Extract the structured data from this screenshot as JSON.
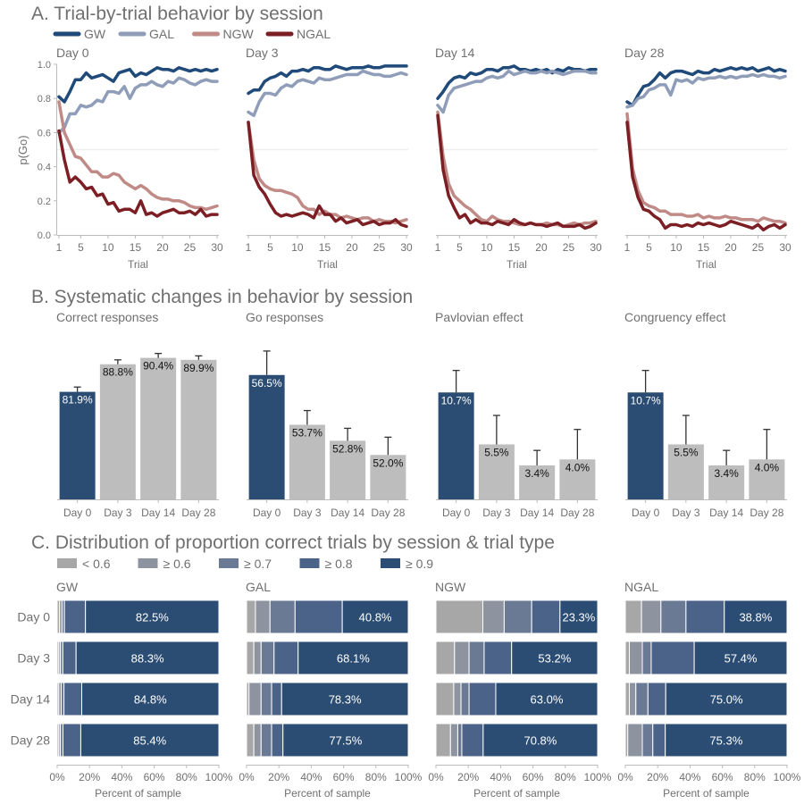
{
  "sections": {
    "a_title": "A. Trial-by-trial behavior by session",
    "b_title": "B. Systematic changes in behavior by session",
    "c_title": "C. Distribution of proportion correct trials by session & trial type"
  },
  "colors": {
    "GW": "#1f4a7a",
    "GAL": "#8f9db8",
    "NGW": "#c08a86",
    "NGAL": "#7c1f24",
    "highlight_bar": "#2c4d73",
    "grey_bar": "#bdbdbd",
    "dist": [
      "#a7a7a7",
      "#8d939f",
      "#6b7a94",
      "#4b6289",
      "#2c4d73"
    ],
    "text": "#707070",
    "axis": "#bbbbbb"
  },
  "chart_data": [
    {
      "id": "A",
      "type": "line",
      "legend": [
        "GW",
        "GAL",
        "NGW",
        "NGAL"
      ],
      "legend_position": "top-left",
      "ylabel": "p(Go)",
      "xlabel": "Trial",
      "ylim": [
        0,
        1
      ],
      "xlim": [
        1,
        30
      ],
      "yticks": [
        "0.0",
        "0.2",
        "0.4",
        "0.6",
        "0.8",
        "1.0"
      ],
      "xticks": [
        1,
        5,
        10,
        15,
        20,
        25,
        30
      ],
      "reference_line": 0.5,
      "panels": [
        {
          "title": "Day 0",
          "series": [
            {
              "name": "GW",
              "values": [
                0.81,
                0.78,
                0.84,
                0.91,
                0.91,
                0.95,
                0.92,
                0.93,
                0.94,
                0.92,
                0.9,
                0.95,
                0.96,
                0.97,
                0.93,
                0.95,
                0.94,
                0.96,
                0.98,
                0.97,
                0.97,
                0.96,
                0.98,
                0.97,
                0.96,
                0.97,
                0.96,
                0.97,
                0.96,
                0.97
              ]
            },
            {
              "name": "GAL",
              "values": [
                0.6,
                0.63,
                0.71,
                0.71,
                0.76,
                0.75,
                0.76,
                0.79,
                0.78,
                0.84,
                0.84,
                0.83,
                0.87,
                0.8,
                0.86,
                0.88,
                0.88,
                0.9,
                0.88,
                0.87,
                0.9,
                0.89,
                0.92,
                0.91,
                0.89,
                0.88,
                0.9,
                0.91,
                0.9,
                0.9
              ]
            },
            {
              "name": "NGW",
              "values": [
                0.78,
                0.6,
                0.53,
                0.46,
                0.45,
                0.41,
                0.37,
                0.37,
                0.34,
                0.34,
                0.36,
                0.35,
                0.31,
                0.29,
                0.27,
                0.29,
                0.27,
                0.24,
                0.22,
                0.21,
                0.21,
                0.2,
                0.2,
                0.19,
                0.17,
                0.16,
                0.16,
                0.15,
                0.16,
                0.17
              ]
            },
            {
              "name": "NGAL",
              "values": [
                0.61,
                0.44,
                0.31,
                0.34,
                0.31,
                0.27,
                0.28,
                0.23,
                0.24,
                0.18,
                0.19,
                0.14,
                0.15,
                0.15,
                0.13,
                0.2,
                0.12,
                0.13,
                0.11,
                0.13,
                0.14,
                0.15,
                0.13,
                0.13,
                0.14,
                0.12,
                0.15,
                0.11,
                0.12,
                0.12
              ]
            }
          ]
        },
        {
          "title": "Day 3",
          "series": [
            {
              "name": "GW",
              "values": [
                0.83,
                0.85,
                0.85,
                0.9,
                0.92,
                0.93,
                0.95,
                0.93,
                0.96,
                0.96,
                0.97,
                0.96,
                0.98,
                0.98,
                0.97,
                0.97,
                0.99,
                0.98,
                0.97,
                0.98,
                0.98,
                0.98,
                0.99,
                0.98,
                0.98,
                0.99,
                0.99,
                0.99,
                0.99,
                0.99
              ]
            },
            {
              "name": "GAL",
              "values": [
                0.72,
                0.7,
                0.78,
                0.83,
                0.83,
                0.82,
                0.86,
                0.88,
                0.87,
                0.9,
                0.91,
                0.9,
                0.89,
                0.92,
                0.91,
                0.91,
                0.92,
                0.93,
                0.94,
                0.94,
                0.94,
                0.96,
                0.95,
                0.94,
                0.94,
                0.93,
                0.93,
                0.94,
                0.95,
                0.94
              ]
            },
            {
              "name": "NGW",
              "values": [
                0.66,
                0.44,
                0.33,
                0.29,
                0.27,
                0.26,
                0.26,
                0.25,
                0.24,
                0.22,
                0.17,
                0.15,
                0.15,
                0.12,
                0.14,
                0.12,
                0.12,
                0.1,
                0.11,
                0.1,
                0.09,
                0.1,
                0.1,
                0.08,
                0.09,
                0.08,
                0.08,
                0.07,
                0.08,
                0.09
              ]
            },
            {
              "name": "NGAL",
              "values": [
                0.66,
                0.35,
                0.28,
                0.24,
                0.18,
                0.13,
                0.11,
                0.12,
                0.11,
                0.12,
                0.13,
                0.12,
                0.1,
                0.17,
                0.12,
                0.12,
                0.08,
                0.1,
                0.07,
                0.08,
                0.09,
                0.06,
                0.07,
                0.08,
                0.06,
                0.07,
                0.07,
                0.09,
                0.06,
                0.05
              ]
            }
          ]
        },
        {
          "title": "Day 14",
          "series": [
            {
              "name": "GW",
              "values": [
                0.8,
                0.84,
                0.89,
                0.92,
                0.93,
                0.92,
                0.95,
                0.94,
                0.95,
                0.97,
                0.97,
                0.96,
                0.98,
                0.98,
                0.99,
                0.97,
                0.97,
                0.96,
                0.97,
                0.96,
                0.97,
                0.95,
                0.97,
                0.96,
                0.98,
                0.97,
                0.97,
                0.96,
                0.97,
                0.97
              ]
            },
            {
              "name": "GAL",
              "values": [
                0.76,
                0.72,
                0.82,
                0.86,
                0.87,
                0.88,
                0.89,
                0.9,
                0.9,
                0.92,
                0.93,
                0.92,
                0.93,
                0.96,
                0.94,
                0.95,
                0.96,
                0.95,
                0.95,
                0.96,
                0.95,
                0.96,
                0.95,
                0.94,
                0.95,
                0.96,
                0.96,
                0.96,
                0.95,
                0.95
              ]
            },
            {
              "name": "NGW",
              "values": [
                0.72,
                0.46,
                0.3,
                0.23,
                0.2,
                0.17,
                0.15,
                0.12,
                0.09,
                0.08,
                0.11,
                0.09,
                0.08,
                0.08,
                0.07,
                0.06,
                0.06,
                0.07,
                0.06,
                0.06,
                0.07,
                0.06,
                0.06,
                0.05,
                0.06,
                0.07,
                0.06,
                0.07,
                0.07,
                0.08
              ]
            },
            {
              "name": "NGAL",
              "values": [
                0.7,
                0.38,
                0.23,
                0.16,
                0.1,
                0.12,
                0.07,
                0.09,
                0.07,
                0.07,
                0.06,
                0.08,
                0.07,
                0.06,
                0.09,
                0.07,
                0.06,
                0.07,
                0.06,
                0.06,
                0.05,
                0.06,
                0.07,
                0.05,
                0.05,
                0.05,
                0.06,
                0.04,
                0.05,
                0.07
              ]
            }
          ]
        },
        {
          "title": "Day 28",
          "series": [
            {
              "name": "GW",
              "values": [
                0.78,
                0.76,
                0.82,
                0.87,
                0.88,
                0.91,
                0.95,
                0.92,
                0.95,
                0.96,
                0.96,
                0.95,
                0.94,
                0.96,
                0.95,
                0.95,
                0.97,
                0.96,
                0.97,
                0.98,
                0.97,
                0.98,
                0.97,
                0.98,
                0.96,
                0.97,
                0.98,
                0.96,
                0.97,
                0.96
              ]
            },
            {
              "name": "GAL",
              "values": [
                0.75,
                0.76,
                0.8,
                0.81,
                0.85,
                0.86,
                0.88,
                0.88,
                0.82,
                0.91,
                0.9,
                0.91,
                0.89,
                0.92,
                0.91,
                0.92,
                0.92,
                0.93,
                0.92,
                0.93,
                0.92,
                0.93,
                0.93,
                0.94,
                0.93,
                0.94,
                0.93,
                0.93,
                0.92,
                0.93
              ]
            },
            {
              "name": "NGW",
              "values": [
                0.71,
                0.39,
                0.26,
                0.19,
                0.17,
                0.16,
                0.14,
                0.14,
                0.12,
                0.12,
                0.12,
                0.11,
                0.11,
                0.12,
                0.1,
                0.11,
                0.1,
                0.1,
                0.11,
                0.1,
                0.1,
                0.09,
                0.09,
                0.09,
                0.08,
                0.1,
                0.09,
                0.08,
                0.08,
                0.07
              ]
            },
            {
              "name": "NGAL",
              "values": [
                0.66,
                0.34,
                0.22,
                0.15,
                0.14,
                0.11,
                0.09,
                0.04,
                0.06,
                0.06,
                0.05,
                0.06,
                0.05,
                0.07,
                0.06,
                0.07,
                0.06,
                0.05,
                0.06,
                0.08,
                0.07,
                0.06,
                0.05,
                0.04,
                0.06,
                0.03,
                0.05,
                0.06,
                0.04,
                0.06
              ]
            }
          ]
        }
      ]
    },
    {
      "id": "B",
      "type": "bar",
      "categories": [
        "Day 0",
        "Day 3",
        "Day 14",
        "Day 28"
      ],
      "highlight_category": "Day 0",
      "panels": [
        {
          "title": "Correct responses",
          "values": [
            81.9,
            88.8,
            90.4,
            89.9
          ],
          "labels": [
            "81.9%",
            "88.8%",
            "90.4%",
            "89.9%"
          ],
          "error": [
            1.2,
            1.1,
            1.1,
            1.0
          ],
          "ylim": [
            55,
            95
          ]
        },
        {
          "title": "Go responses",
          "values": [
            56.5,
            53.7,
            52.8,
            52.0
          ],
          "labels": [
            "56.5%",
            "53.7%",
            "52.8%",
            "52.0%"
          ],
          "error": [
            1.35,
            0.8,
            0.7,
            1.0
          ],
          "ylim": [
            49.5,
            58.5
          ]
        },
        {
          "title": "Pavlovian effect",
          "values": [
            10.7,
            5.5,
            3.4,
            4.0
          ],
          "labels": [
            "10.7%",
            "5.5%",
            "3.4%",
            "4.0%"
          ],
          "error": [
            2.2,
            2.9,
            1.5,
            3.0
          ],
          "ylim": [
            0,
            16
          ]
        },
        {
          "title": "Congruency effect",
          "values": [
            10.7,
            5.5,
            3.4,
            4.0
          ],
          "labels": [
            "10.7%",
            "5.5%",
            "3.4%",
            "4.0%"
          ],
          "error": [
            2.2,
            2.9,
            1.5,
            3.0
          ],
          "ylim": [
            0,
            16
          ]
        }
      ]
    },
    {
      "id": "C",
      "type": "bar",
      "orientation": "horizontal",
      "stacked": true,
      "legend": [
        "< 0.6",
        "≥ 0.6",
        "≥ 0.7",
        "≥ 0.8",
        "≥ 0.9"
      ],
      "legend_position": "top-left",
      "categories": [
        "Day 0",
        "Day 3",
        "Day 14",
        "Day 28"
      ],
      "xlabel": "Percent of sample",
      "xticks": [
        "0%",
        "20%",
        "40%",
        "60%",
        "80%",
        "100%"
      ],
      "xlim": [
        0,
        100
      ],
      "panels": [
        {
          "title": "GW",
          "rows": [
            [
              1.5,
              1.5,
              1.5,
              13.0,
              82.5
            ],
            [
              1.0,
              1.0,
              1.5,
              8.2,
              88.3
            ],
            [
              1.0,
              1.5,
              1.7,
              11.0,
              84.8
            ],
            [
              1.0,
              1.0,
              1.6,
              11.0,
              85.4
            ]
          ],
          "labels": [
            "82.5%",
            "88.3%",
            "84.8%",
            "85.4%"
          ]
        },
        {
          "title": "GAL",
          "rows": [
            [
              5.5,
              9.0,
              15.5,
              29.2,
              40.8
            ],
            [
              4.5,
              4.5,
              8.0,
              14.9,
              68.1
            ],
            [
              1.5,
              7.5,
              6.5,
              6.2,
              78.3
            ],
            [
              4.5,
              4.5,
              6.5,
              7.0,
              77.5
            ]
          ],
          "labels": [
            "40.8%",
            "68.1%",
            "78.3%",
            "77.5%"
          ]
        },
        {
          "title": "NGW",
          "rows": [
            [
              29.0,
              13.2,
              17.0,
              17.5,
              23.3
            ],
            [
              11.5,
              9.0,
              9.3,
              17.0,
              53.2
            ],
            [
              11.0,
              4.5,
              5.0,
              16.5,
              63.0
            ],
            [
              9.0,
              4.5,
              2.5,
              13.2,
              70.8
            ]
          ],
          "labels": [
            "23.3%",
            "53.2%",
            "63.0%",
            "70.8%"
          ]
        },
        {
          "title": "NGAL",
          "rows": [
            [
              10.0,
              12.0,
              15.5,
              23.7,
              38.8
            ],
            [
              2.5,
              8.0,
              5.5,
              26.6,
              57.4
            ],
            [
              2.5,
              4.0,
              7.5,
              11.0,
              75.0
            ],
            [
              1.5,
              9.0,
              6.5,
              7.7,
              75.3
            ]
          ],
          "labels": [
            "38.8%",
            "57.4%",
            "75.0%",
            "75.3%"
          ]
        }
      ]
    }
  ]
}
